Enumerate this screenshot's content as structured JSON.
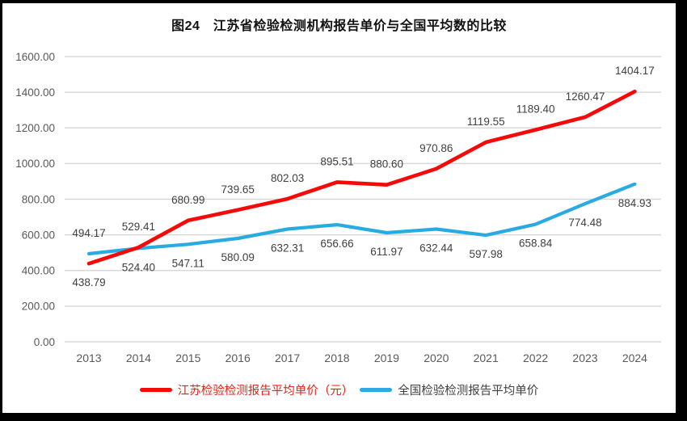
{
  "window": {
    "frame_color": "#000000",
    "background_color": "#ffffff"
  },
  "chart_data": {
    "type": "line",
    "title": "图24　江苏省检验检测机构报告单价与全国平均数的比较",
    "categories": [
      "2013",
      "2014",
      "2015",
      "2016",
      "2017",
      "2018",
      "2019",
      "2020",
      "2021",
      "2022",
      "2023",
      "2024"
    ],
    "series": [
      {
        "name": "江苏检验检测报告平均单价（元）",
        "color": "#f50a0a",
        "legend_text_color": "#e02417",
        "stroke_width": 4.6,
        "values": [
          438.79,
          529.41,
          680.99,
          739.65,
          802.03,
          895.51,
          880.6,
          970.86,
          1119.55,
          1189.4,
          1260.47,
          1404.17
        ],
        "label_position": "above",
        "label_position_overrides": {
          "2013": "below"
        }
      },
      {
        "name": "全国检验检测报告平均单价",
        "color": "#29abe2",
        "legend_text_color": "#3f3f3f",
        "stroke_width": 4.2,
        "values": [
          494.17,
          524.4,
          547.11,
          580.09,
          632.31,
          656.66,
          611.97,
          632.44,
          597.98,
          658.84,
          774.48,
          884.93
        ],
        "label_position": "below",
        "label_position_overrides": {
          "2013": "above"
        }
      }
    ],
    "ylim": [
      0,
      1600
    ],
    "ytick_step": 200,
    "ytick_decimals": 2,
    "ytick_labels": [
      "0.00",
      "200.00",
      "400.00",
      "600.00",
      "800.00",
      "1000.00",
      "1200.00",
      "1400.00",
      "1600.00"
    ],
    "grid": true,
    "legend_position": "bottom",
    "colors": {
      "gridline": "#d9d9d9",
      "axis_tick_text": "#595959",
      "data_label_text": "#404040"
    }
  }
}
